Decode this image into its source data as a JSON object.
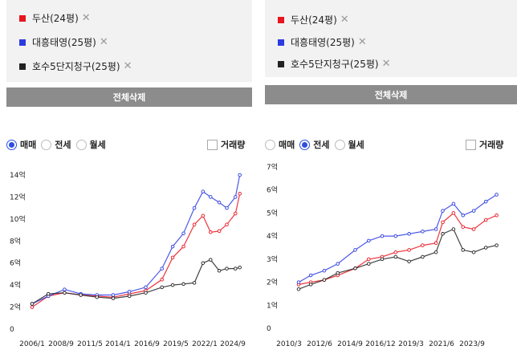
{
  "panels": [
    {
      "tags": [
        {
          "label": "두산(24평)",
          "color": "#e8141e"
        },
        {
          "label": "대흥태영(25평)",
          "color": "#2b3be0"
        },
        {
          "label": "호수5단지청구(25평)",
          "color": "#222222"
        }
      ],
      "clear_label": "전체삭제",
      "radios": [
        {
          "label": "매매",
          "selected": true
        },
        {
          "label": "전세",
          "selected": false
        },
        {
          "label": "월세",
          "selected": false
        }
      ],
      "volume_label": "거래량"
    },
    {
      "tags": [
        {
          "label": "두산(24평)",
          "color": "#e8141e"
        },
        {
          "label": "대흥태영(25평)",
          "color": "#2b3be0"
        },
        {
          "label": "호수5단지청구(25평)",
          "color": "#222222"
        }
      ],
      "clear_label": "전체삭제",
      "radios": [
        {
          "label": "매매",
          "selected": false
        },
        {
          "label": "전세",
          "selected": true
        },
        {
          "label": "월세",
          "selected": false
        }
      ],
      "volume_label": "거래량"
    }
  ],
  "chart_data": [
    {
      "type": "line",
      "title": "",
      "x_tick_labels": [
        "2006/1",
        "2008/9",
        "2011/5",
        "2014/1",
        "2016/9",
        "2019/5",
        "2022/1",
        "2024/9"
      ],
      "y_tick_labels": [
        "0",
        "2억",
        "4억",
        "6억",
        "8억",
        "10억",
        "12억",
        "14억"
      ],
      "ylim": [
        0,
        14
      ],
      "x": [
        2006.0,
        2007.5,
        2009.0,
        2010.5,
        2012.0,
        2013.5,
        2015.0,
        2016.5,
        2018.0,
        2019.0,
        2020.0,
        2021.0,
        2021.8,
        2022.5,
        2023.3,
        2024.0,
        2024.8,
        2025.2
      ],
      "series": [
        {
          "name": "두산(24평)",
          "color": "#e8141e",
          "values": [
            2.0,
            3.0,
            3.3,
            3.1,
            3.0,
            2.9,
            3.2,
            3.5,
            4.5,
            6.5,
            7.5,
            9.5,
            10.3,
            8.8,
            8.9,
            9.5,
            10.5,
            12.3
          ]
        },
        {
          "name": "대흥태영(25평)",
          "color": "#2b3be0",
          "values": [
            2.3,
            3.0,
            3.6,
            3.2,
            3.1,
            3.1,
            3.4,
            3.8,
            5.5,
            7.5,
            8.7,
            11.0,
            12.5,
            12.0,
            11.5,
            11.0,
            12.0,
            14.0
          ]
        },
        {
          "name": "호수5단지청구(25평)",
          "color": "#222222",
          "values": [
            2.3,
            3.2,
            3.3,
            3.1,
            2.9,
            2.8,
            3.0,
            3.3,
            3.8,
            4.0,
            4.1,
            4.2,
            6.0,
            6.3,
            5.3,
            5.5,
            5.5,
            5.6
          ]
        }
      ]
    },
    {
      "type": "line",
      "title": "",
      "x_tick_labels": [
        "2010/3",
        "2012/6",
        "2014/9",
        "2016/12",
        "2019/3",
        "2021/6",
        "2023/9"
      ],
      "y_tick_labels": [
        "0",
        "1억",
        "2억",
        "3억",
        "4억",
        "5억",
        "6억",
        "7억"
      ],
      "ylim": [
        0,
        7
      ],
      "x": [
        2010.3,
        2011.2,
        2012.2,
        2013.2,
        2014.5,
        2015.5,
        2016.5,
        2017.5,
        2018.5,
        2019.5,
        2020.5,
        2021.0,
        2021.8,
        2022.5,
        2023.3,
        2024.2,
        2025.0
      ],
      "series": [
        {
          "name": "두산(24평)",
          "color": "#e8141e",
          "values": [
            1.9,
            2.0,
            2.1,
            2.3,
            2.6,
            3.0,
            3.1,
            3.3,
            3.4,
            3.6,
            3.7,
            4.6,
            5.0,
            4.4,
            4.3,
            4.7,
            4.9
          ]
        },
        {
          "name": "대흥태영(25평)",
          "color": "#2b3be0",
          "values": [
            2.0,
            2.3,
            2.5,
            2.8,
            3.4,
            3.8,
            4.0,
            4.0,
            4.1,
            4.2,
            4.3,
            5.1,
            5.4,
            4.9,
            5.1,
            5.5,
            5.8
          ]
        },
        {
          "name": "호수5단지청구(25평)",
          "color": "#222222",
          "values": [
            1.7,
            1.9,
            2.1,
            2.4,
            2.6,
            2.8,
            3.0,
            3.1,
            2.9,
            3.1,
            3.3,
            4.1,
            4.3,
            3.4,
            3.3,
            3.5,
            3.6
          ]
        }
      ]
    }
  ]
}
